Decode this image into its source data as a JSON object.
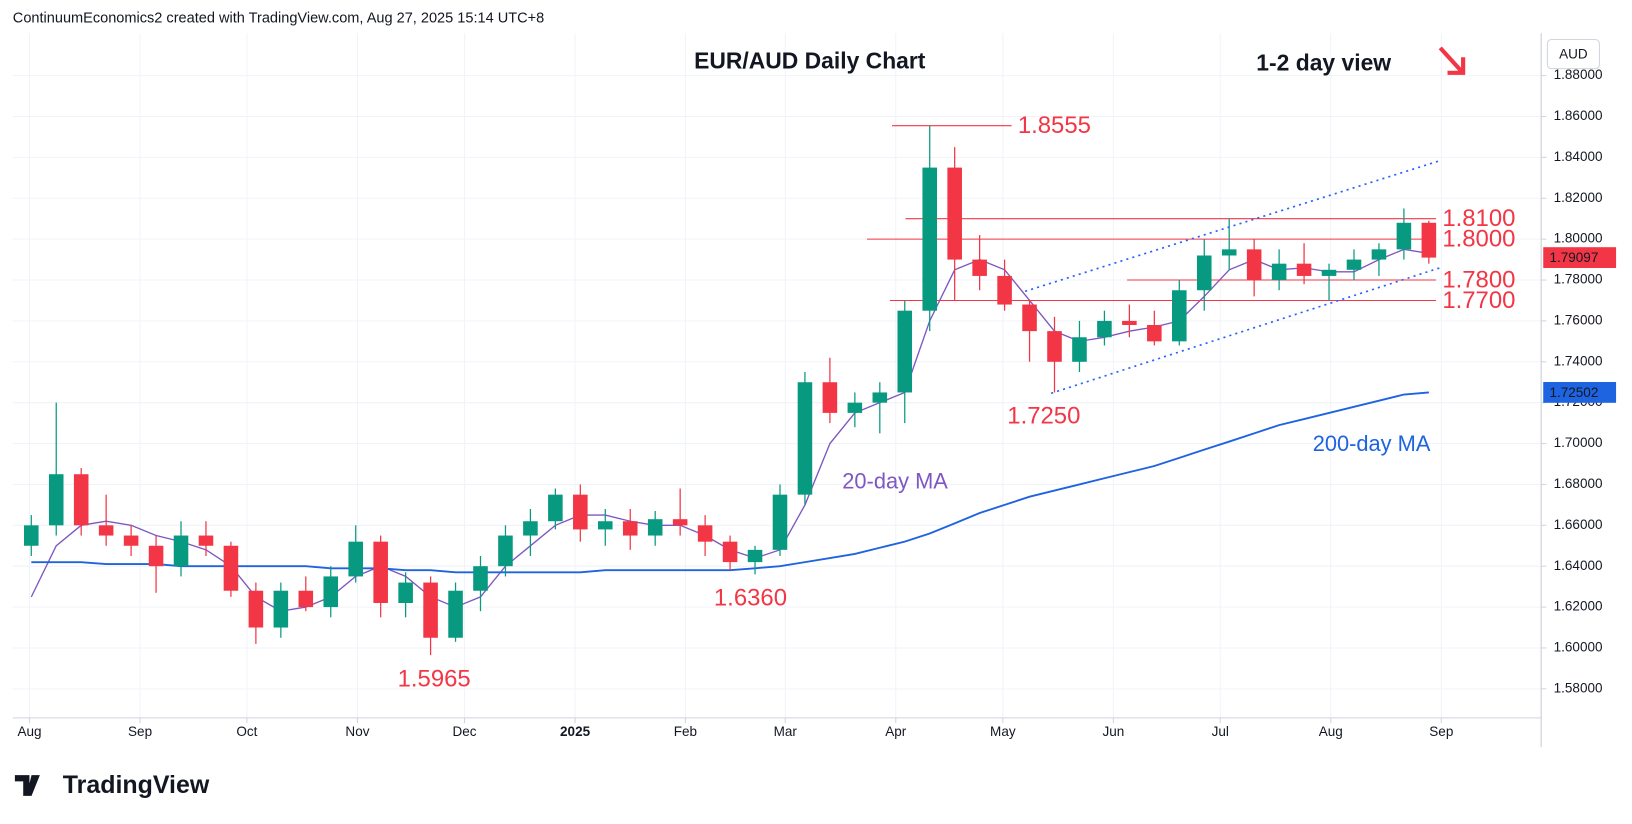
{
  "header": "ContinuumEconomics2 created with TradingView.com, Aug 27, 2025 15:14 UTC+8",
  "footer": "TradingView",
  "chart_data": {
    "type": "candlestick",
    "title": "EUR/AUD Daily Chart",
    "currency": "AUD",
    "view": "1-2 day view",
    "up_color": "#089981",
    "down_color": "#f23645",
    "grid": true,
    "x": [
      0,
      1,
      2,
      3,
      4,
      5,
      6,
      7,
      8,
      9,
      10,
      11,
      12,
      13,
      14,
      15,
      16,
      17,
      18,
      19,
      20,
      21,
      22,
      23,
      24,
      25,
      26,
      27,
      28,
      29,
      30,
      31,
      32,
      33,
      34,
      35,
      36,
      37,
      38,
      39,
      40,
      41,
      42,
      43,
      44,
      45,
      46,
      47,
      48,
      49,
      50,
      51,
      52,
      53,
      54,
      55,
      56
    ],
    "open": [
      1.65,
      1.66,
      1.685,
      1.66,
      1.655,
      1.65,
      1.64,
      1.655,
      1.65,
      1.628,
      1.61,
      1.628,
      1.62,
      1.635,
      1.652,
      1.622,
      1.632,
      1.605,
      1.628,
      1.64,
      1.655,
      1.662,
      1.675,
      1.658,
      1.662,
      1.655,
      1.663,
      1.66,
      1.652,
      1.642,
      1.648,
      1.675,
      1.73,
      1.715,
      1.72,
      1.725,
      1.765,
      1.835,
      1.79,
      1.782,
      1.768,
      1.755,
      1.74,
      1.752,
      1.76,
      1.758,
      1.75,
      1.775,
      1.792,
      1.795,
      1.78,
      1.788,
      1.782,
      1.785,
      1.79,
      1.795,
      1.808
    ],
    "high": [
      1.665,
      1.72,
      1.688,
      1.675,
      1.66,
      1.655,
      1.662,
      1.662,
      1.652,
      1.632,
      1.632,
      1.635,
      1.64,
      1.66,
      1.655,
      1.637,
      1.635,
      1.632,
      1.645,
      1.66,
      1.668,
      1.678,
      1.68,
      1.668,
      1.668,
      1.667,
      1.678,
      1.665,
      1.655,
      1.65,
      1.68,
      1.735,
      1.742,
      1.725,
      1.73,
      1.77,
      1.8555,
      1.845,
      1.802,
      1.79,
      1.77,
      1.762,
      1.76,
      1.765,
      1.768,
      1.765,
      1.78,
      1.8,
      1.81,
      1.8,
      1.795,
      1.798,
      1.788,
      1.795,
      1.798,
      1.815,
      1.809
    ],
    "low": [
      1.645,
      1.655,
      1.655,
      1.65,
      1.645,
      1.627,
      1.635,
      1.645,
      1.625,
      1.602,
      1.605,
      1.618,
      1.615,
      1.632,
      1.615,
      1.615,
      1.5965,
      1.603,
      1.618,
      1.635,
      1.645,
      1.658,
      1.652,
      1.65,
      1.648,
      1.65,
      1.655,
      1.645,
      1.638,
      1.636,
      1.645,
      1.67,
      1.71,
      1.708,
      1.705,
      1.71,
      1.755,
      1.77,
      1.775,
      1.765,
      1.74,
      1.725,
      1.735,
      1.748,
      1.752,
      1.748,
      1.748,
      1.765,
      1.785,
      1.772,
      1.775,
      1.778,
      1.77,
      1.78,
      1.782,
      1.79,
      1.788
    ],
    "close": [
      1.66,
      1.685,
      1.66,
      1.655,
      1.65,
      1.64,
      1.655,
      1.65,
      1.628,
      1.61,
      1.628,
      1.62,
      1.635,
      1.652,
      1.622,
      1.632,
      1.605,
      1.628,
      1.64,
      1.655,
      1.662,
      1.675,
      1.658,
      1.662,
      1.655,
      1.663,
      1.66,
      1.652,
      1.642,
      1.648,
      1.675,
      1.73,
      1.715,
      1.72,
      1.725,
      1.765,
      1.835,
      1.79,
      1.782,
      1.768,
      1.755,
      1.74,
      1.752,
      1.76,
      1.758,
      1.75,
      1.775,
      1.792,
      1.795,
      1.78,
      1.788,
      1.782,
      1.785,
      1.79,
      1.795,
      1.808,
      1.79097
    ],
    "moving_averages": [
      {
        "name": "20-day MA",
        "color": "#7e57c2",
        "values": [
          1.625,
          1.65,
          1.66,
          1.662,
          1.66,
          1.655,
          1.652,
          1.648,
          1.64,
          1.625,
          1.618,
          1.62,
          1.625,
          1.635,
          1.64,
          1.635,
          1.625,
          1.62,
          1.625,
          1.64,
          1.65,
          1.66,
          1.665,
          1.665,
          1.662,
          1.66,
          1.66,
          1.655,
          1.648,
          1.644,
          1.648,
          1.67,
          1.7,
          1.715,
          1.72,
          1.725,
          1.76,
          1.785,
          1.79,
          1.785,
          1.77,
          1.755,
          1.75,
          1.752,
          1.755,
          1.757,
          1.76,
          1.772,
          1.785,
          1.79,
          1.785,
          1.786,
          1.784,
          1.784,
          1.79,
          1.795,
          1.793
        ]
      },
      {
        "name": "200-day MA",
        "color": "#1e63e0",
        "values": [
          1.642,
          1.642,
          1.642,
          1.641,
          1.641,
          1.641,
          1.64,
          1.64,
          1.64,
          1.64,
          1.64,
          1.64,
          1.639,
          1.639,
          1.639,
          1.638,
          1.638,
          1.637,
          1.637,
          1.637,
          1.637,
          1.637,
          1.637,
          1.638,
          1.638,
          1.638,
          1.638,
          1.638,
          1.638,
          1.639,
          1.64,
          1.642,
          1.644,
          1.646,
          1.649,
          1.652,
          1.656,
          1.661,
          1.666,
          1.67,
          1.674,
          1.677,
          1.68,
          1.683,
          1.686,
          1.689,
          1.693,
          1.697,
          1.701,
          1.705,
          1.709,
          1.712,
          1.715,
          1.718,
          1.721,
          1.724,
          1.72502
        ]
      }
    ],
    "levels": [
      {
        "value": 1.8555,
        "label": "1.8555"
      },
      {
        "value": 1.81,
        "label": "1.8100"
      },
      {
        "value": 1.8,
        "label": "1.8000"
      },
      {
        "value": 1.78,
        "label": "1.7800"
      },
      {
        "value": 1.77,
        "label": "1.7700"
      }
    ],
    "lows": [
      {
        "value": 1.725,
        "label": "1.7250"
      },
      {
        "value": 1.636,
        "label": "1.6360"
      },
      {
        "value": 1.5965,
        "label": "1.5965"
      }
    ],
    "xlim": [
      -0.24,
      61
    ],
    "xticks": [
      {
        "value": 0.43,
        "label": "Aug"
      },
      {
        "value": 4.86,
        "label": "Sep"
      },
      {
        "value": 9.14,
        "label": "Oct"
      },
      {
        "value": 13.57,
        "label": "Nov"
      },
      {
        "value": 17.86,
        "label": "Dec"
      },
      {
        "value": 22.29,
        "label": "2025"
      },
      {
        "value": 26.71,
        "label": "Feb"
      },
      {
        "value": 30.71,
        "label": "Mar"
      },
      {
        "value": 35.14,
        "label": "Apr"
      },
      {
        "value": 39.43,
        "label": "May"
      },
      {
        "value": 43.86,
        "label": "Jun"
      },
      {
        "value": 48.14,
        "label": "Jul"
      },
      {
        "value": 52.57,
        "label": "Aug"
      },
      {
        "value": 57,
        "label": "Sep"
      }
    ],
    "ylim": [
      1.5658,
      1.9007
    ],
    "yticks": [
      {
        "value": 1.58,
        "label": "1.58000"
      },
      {
        "value": 1.6,
        "label": "1.60000"
      },
      {
        "value": 1.62,
        "label": "1.62000"
      },
      {
        "value": 1.64,
        "label": "1.64000"
      },
      {
        "value": 1.66,
        "label": "1.66000"
      },
      {
        "value": 1.68,
        "label": "1.68000"
      },
      {
        "value": 1.7,
        "label": "1.70000"
      },
      {
        "value": 1.72,
        "label": "1.72000"
      },
      {
        "value": 1.74,
        "label": "1.74000"
      },
      {
        "value": 1.76,
        "label": "1.76000"
      },
      {
        "value": 1.78,
        "label": "1.78000"
      },
      {
        "value": 1.8,
        "label": "1.80000"
      },
      {
        "value": 1.82,
        "label": "1.82000"
      },
      {
        "value": 1.84,
        "label": "1.84000"
      },
      {
        "value": 1.86,
        "label": "1.86000"
      },
      {
        "value": 1.88,
        "label": "1.88000"
      }
    ]
  }
}
